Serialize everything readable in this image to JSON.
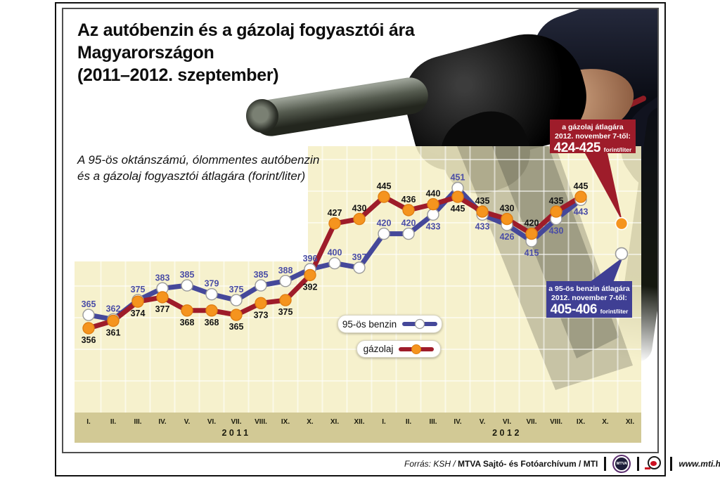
{
  "title": {
    "line1": "Az autóbenzin és a gázolaj fogyasztói ára",
    "line2": "Magyarországon",
    "line3": "(2011–2012. szeptember)"
  },
  "subtitle": {
    "line1": "A 95-ös oktánszámú, ólommentes autóbenzin",
    "line2": "és a gázolaj fogyasztói átlagára (forint/liter)"
  },
  "legend": {
    "benzin_label": "95-ös benzin",
    "gazolaj_label": "gázolaj"
  },
  "annotations": {
    "gazolaj": {
      "line1": "a gázolaj átlagára",
      "line2": "2012. november 7-től:",
      "value": "424-425",
      "unit": "forint/liter"
    },
    "benzin": {
      "line1": "a 95-ös benzin átlagára",
      "line2": "2012. november 7-től:",
      "value": "405-406",
      "unit": "forint/liter"
    }
  },
  "footer": {
    "source_italic": "Forrás: KSH /",
    "source_bold": "MTVA Sajtó- és Fotóarchívum / MTI",
    "mtva_logo_text": "MTVA",
    "website": "www.mti.hu"
  },
  "colors": {
    "benzin_line": "#45489a",
    "benzin_marker_fill": "#ffffff",
    "benzin_marker_stroke": "#9a9a9a",
    "benzin_label": "#4a4da6",
    "gazolaj_line": "#9e1c2a",
    "gazolaj_marker_fill": "#f5941e",
    "gazolaj_marker_stroke": "#e07f12",
    "gazolaj_label": "#141414",
    "plot_bg": "rgba(245,239,198,0.88)",
    "axis_strip": "#d2c995",
    "gridline": "rgba(255,255,255,0.55)",
    "month_label": "#1c1c0e",
    "annotation_gazolaj_bg": "#9e1c2a",
    "annotation_benzin_bg": "#3f3f94"
  },
  "chart_data": {
    "type": "line",
    "title": "Az autóbenzin és a gázolaj fogyasztói ára Magyarországon (2011–2012. szeptember)",
    "ylabel": "forint/liter",
    "ylim": [
      340,
      460
    ],
    "grid": true,
    "legend_position": "center-bottom",
    "x_groups": [
      {
        "year": "2011",
        "months": [
          "I.",
          "II.",
          "III.",
          "IV.",
          "V.",
          "VI.",
          "VII.",
          "VIII.",
          "IX.",
          "X.",
          "XI.",
          "XII."
        ]
      },
      {
        "year": "2012",
        "months": [
          "I.",
          "II.",
          "III.",
          "IV.",
          "V.",
          "VI.",
          "VII.",
          "VIII.",
          "IX.",
          "X.",
          "XI."
        ]
      }
    ],
    "series": [
      {
        "name": "95-ös benzin",
        "values": [
          365,
          362,
          375,
          383,
          385,
          379,
          375,
          385,
          388,
          396,
          400,
          397,
          420,
          420,
          433,
          451,
          433,
          426,
          415,
          430,
          443
        ],
        "label_side": [
          "above",
          "above",
          "above",
          "above",
          "above",
          "above",
          "above",
          "above",
          "above",
          "above",
          "above",
          "above",
          "above",
          "above",
          "below",
          "above",
          "below",
          "below",
          "below",
          "below",
          "below"
        ]
      },
      {
        "name": "gázolaj",
        "values": [
          356,
          361,
          374,
          377,
          368,
          368,
          365,
          373,
          375,
          392,
          427,
          430,
          445,
          436,
          440,
          445,
          435,
          430,
          420,
          435,
          445
        ],
        "label_side": [
          "below",
          "below",
          "below",
          "below",
          "below",
          "below",
          "below",
          "below",
          "below",
          "below",
          "above",
          "above",
          "above",
          "above",
          "above",
          "below",
          "above",
          "above",
          "above",
          "above",
          "above"
        ]
      }
    ],
    "extra_points": [
      {
        "series": "gázolaj",
        "month": "2012 XI.",
        "value": 424.5
      },
      {
        "series": "95-ös benzin",
        "month": "2012 XI.",
        "value": 405.5
      }
    ]
  }
}
